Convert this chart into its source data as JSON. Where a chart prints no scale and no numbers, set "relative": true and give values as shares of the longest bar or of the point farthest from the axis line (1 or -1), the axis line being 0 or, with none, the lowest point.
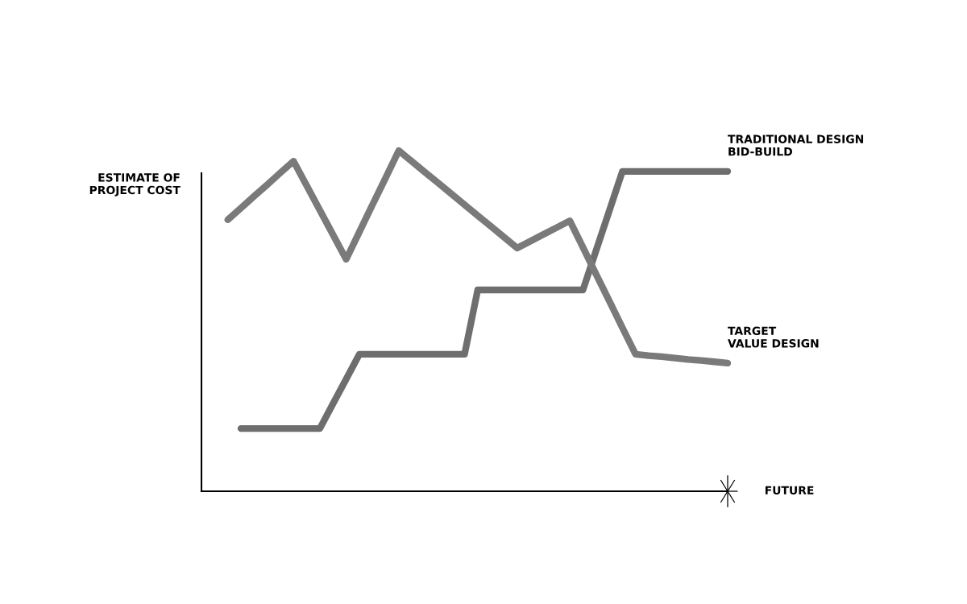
{
  "chart_data": {
    "type": "line",
    "relative": true,
    "xlabel": "FUTURE",
    "ylabel": "ESTIMATE OF\nPROJECT COST",
    "marker": "none",
    "line_style": "solid",
    "categories": [
      null,
      null,
      null,
      null,
      null,
      null,
      null,
      null,
      null,
      null,
      null,
      null,
      null,
      null,
      null,
      null,
      null,
      null,
      null,
      null,
      null,
      null,
      null,
      null,
      null,
      null,
      null,
      null,
      null,
      null,
      null,
      null,
      null,
      null,
      null,
      null,
      null,
      null,
      null,
      null,
      null
    ],
    "series": [
      {
        "name": "TRADITIONAL DESIGN\nBID-BUILD",
        "color": "#6e6e6e",
        "values": [
          null,
          null,
          null,
          0.184,
          0.184,
          0.184,
          0.184,
          0.184,
          0.184,
          0.184,
          0.257,
          0.329,
          0.402,
          0.402,
          0.402,
          0.402,
          0.402,
          0.402,
          0.402,
          0.402,
          0.402,
          0.591,
          0.591,
          0.591,
          0.591,
          0.591,
          0.591,
          0.591,
          0.591,
          0.591,
          0.707,
          0.823,
          0.939,
          0.939,
          0.939,
          0.939,
          0.939,
          0.939,
          0.939,
          0.939,
          0.939
        ]
      },
      {
        "name": "TARGET\nVALUE DESIGN",
        "color": "#7a7a7a",
        "values": [
          null,
          null,
          0.797,
          0.831,
          0.866,
          0.9,
          0.935,
          0.969,
          0.897,
          0.825,
          0.753,
          0.681,
          0.761,
          0.841,
          0.92,
          1.0,
          0.968,
          0.936,
          0.905,
          0.873,
          0.841,
          0.809,
          0.778,
          0.746,
          0.714,
          0.734,
          0.754,
          0.774,
          0.794,
          0.716,
          0.637,
          0.559,
          0.48,
          0.402,
          0.398,
          0.395,
          0.391,
          0.387,
          0.384,
          0.38,
          0.376
        ]
      }
    ]
  }
}
